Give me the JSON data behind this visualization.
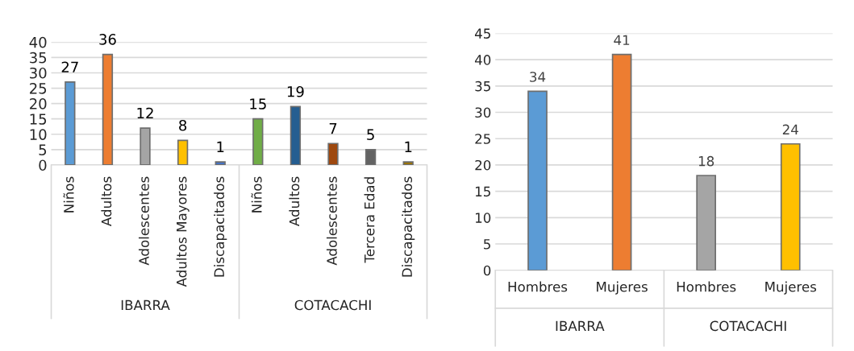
{
  "chart_data": [
    {
      "type": "bar",
      "categories": [
        "Niños",
        "Adultos",
        "Adolescentes",
        "Adultos Mayores",
        "Discapacitados",
        "Niños",
        "Adultos",
        "Adolescentes",
        "Tercera Edad",
        "Discapacitados"
      ],
      "values": [
        27,
        36,
        12,
        8,
        1,
        15,
        19,
        7,
        5,
        1
      ],
      "colors": [
        "#5b9bd5",
        "#ed7d31",
        "#a5a5a5",
        "#ffc000",
        "#4472c4",
        "#70ad47",
        "#255e91",
        "#9e480e",
        "#636363",
        "#997300"
      ],
      "ylim": [
        0,
        40
      ],
      "yticks": [
        0,
        5,
        10,
        15,
        20,
        25,
        30,
        35,
        40
      ],
      "grid": "y",
      "data_labels": true,
      "annotations": [
        "IBARRA",
        "COTACACHI"
      ]
    },
    {
      "type": "bar",
      "categories": [
        "Hombres",
        "Mujeres",
        "Hombres",
        "Mujeres"
      ],
      "values": [
        34,
        41,
        18,
        24
      ],
      "colors": [
        "#5b9bd5",
        "#ed7d31",
        "#a5a5a5",
        "#ffc000"
      ],
      "ylim": [
        0,
        45
      ],
      "yticks": [
        0,
        5,
        10,
        15,
        20,
        25,
        30,
        35,
        40,
        45
      ],
      "grid": "y",
      "data_labels": true,
      "annotations": [
        "IBARRA",
        "COTACACHI"
      ]
    }
  ]
}
